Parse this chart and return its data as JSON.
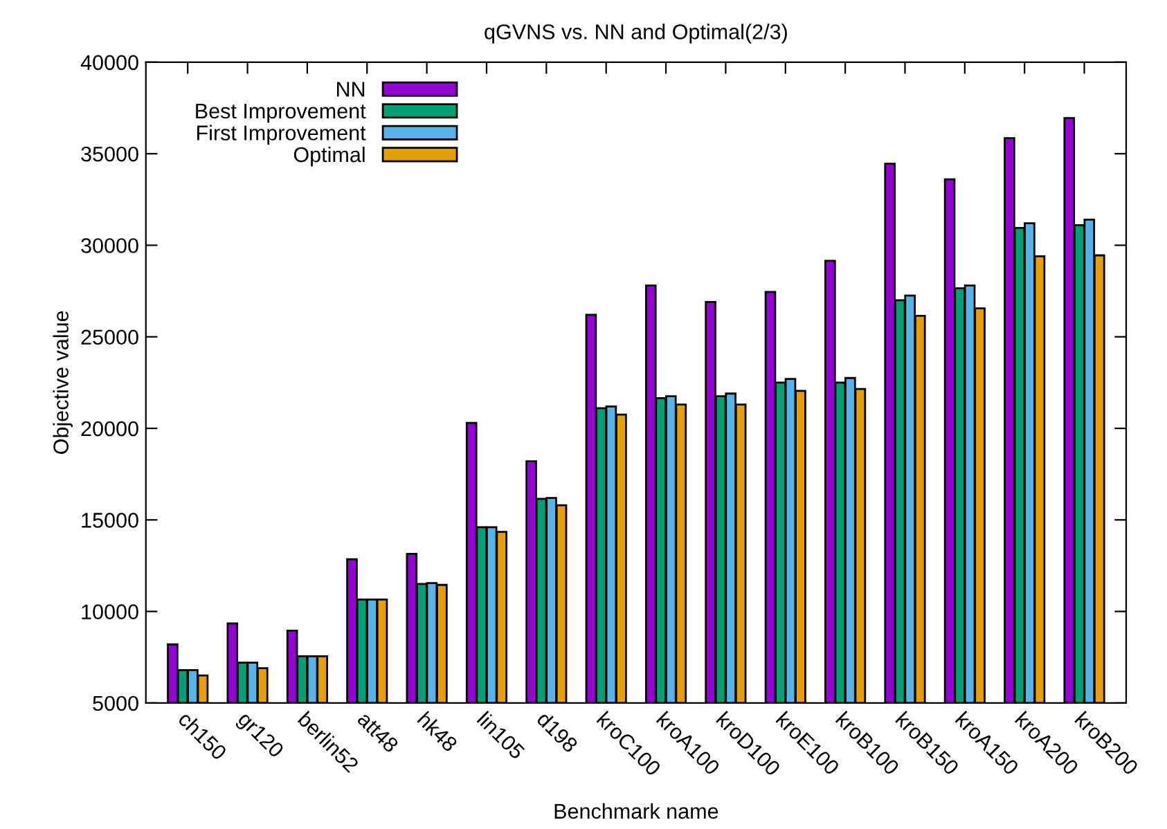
{
  "chart_data": {
    "type": "bar",
    "title": "qGVNS vs. NN and Optimal(2/3)",
    "xlabel": "Benchmark name",
    "ylabel": "Objective value",
    "categories": [
      "ch150",
      "gr120",
      "berlin52",
      "att48",
      "hk48",
      "lin105",
      "d198",
      "kroC100",
      "kroA100",
      "kroD100",
      "kroE100",
      "kroB100",
      "kroB150",
      "kroA150",
      "kroA200",
      "kroB200"
    ],
    "series": [
      {
        "name": "NN",
        "color": "#9400d3",
        "values": [
          8200,
          9350,
          8950,
          12850,
          13150,
          20300,
          18200,
          26200,
          27800,
          26900,
          27450,
          29150,
          34450,
          33600,
          35850,
          36950
        ]
      },
      {
        "name": "Best Improvement",
        "color": "#009e73",
        "values": [
          6800,
          7200,
          7550,
          10650,
          11500,
          14600,
          16150,
          21100,
          21650,
          21750,
          22500,
          22500,
          27000,
          27650,
          30950,
          31100
        ]
      },
      {
        "name": "First Improvement",
        "color": "#56b4e9",
        "values": [
          6800,
          7200,
          7550,
          10650,
          11550,
          14600,
          16200,
          21200,
          21750,
          21900,
          22700,
          22750,
          27250,
          27800,
          31200,
          31400
        ]
      },
      {
        "name": "Optimal",
        "color": "#e69f00",
        "values": [
          6500,
          6900,
          7550,
          10650,
          11450,
          14350,
          15800,
          20750,
          21300,
          21300,
          22050,
          22150,
          26150,
          26550,
          29400,
          29450
        ]
      }
    ],
    "ylim": [
      5000,
      40000
    ],
    "yticks": [
      5000,
      10000,
      15000,
      20000,
      25000,
      30000,
      35000,
      40000
    ],
    "grid": false,
    "legend": "top left"
  }
}
